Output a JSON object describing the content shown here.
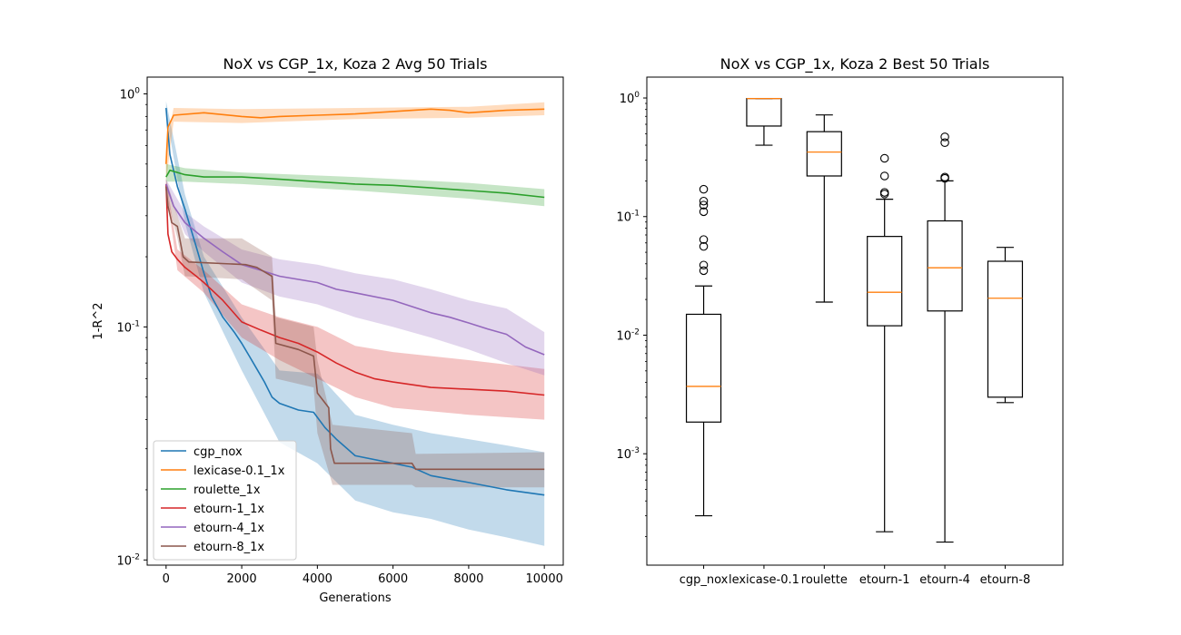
{
  "chart_data": [
    {
      "type": "line",
      "title": "NoX vs CGP_1x, Koza 2 Avg 50 Trials",
      "xlabel": "Generations",
      "ylabel": "1-R^2",
      "xlim": [
        -500,
        10500
      ],
      "ylim": [
        0.0095,
        1.18
      ],
      "yscale": "log",
      "xticks": [
        0,
        2000,
        4000,
        6000,
        8000,
        10000
      ],
      "xtick_labels": [
        "0",
        "2000",
        "4000",
        "6000",
        "8000",
        "10000"
      ],
      "ytick_labels": [
        {
          "label": "10",
          "exp": "0",
          "value": 1
        },
        {
          "label": "10",
          "exp": "-1",
          "value": 0.1
        },
        {
          "label": "10",
          "exp": "-2",
          "value": 0.01
        }
      ],
      "grid": false,
      "legend_position": "lower-left",
      "series": [
        {
          "name": "cgp_nox",
          "color": "#1f77b4",
          "points": [
            [
              0,
              0.87
            ],
            [
              100,
              0.55
            ],
            [
              300,
              0.4
            ],
            [
              500,
              0.32
            ],
            [
              800,
              0.22
            ],
            [
              1000,
              0.17
            ],
            [
              1200,
              0.135
            ],
            [
              1500,
              0.11
            ],
            [
              1800,
              0.095
            ],
            [
              2000,
              0.085
            ],
            [
              2200,
              0.075
            ],
            [
              2400,
              0.066
            ],
            [
              2600,
              0.058
            ],
            [
              2800,
              0.05
            ],
            [
              3000,
              0.047
            ],
            [
              3500,
              0.044
            ],
            [
              3900,
              0.043
            ],
            [
              4200,
              0.037
            ],
            [
              4500,
              0.033
            ],
            [
              5000,
              0.028
            ],
            [
              6000,
              0.026
            ],
            [
              6500,
              0.025
            ],
            [
              7000,
              0.023
            ],
            [
              8000,
              0.0215
            ],
            [
              9000,
              0.02
            ],
            [
              10000,
              0.019
            ]
          ],
          "band": [
            [
              0,
              0.82,
              0.93
            ],
            [
              500,
              0.28,
              0.37
            ],
            [
              1000,
              0.14,
              0.2
            ],
            [
              2000,
              0.065,
              0.11
            ],
            [
              3000,
              0.032,
              0.065
            ],
            [
              4000,
              0.026,
              0.063
            ],
            [
              5000,
              0.018,
              0.042
            ],
            [
              6000,
              0.016,
              0.038
            ],
            [
              7000,
              0.015,
              0.035
            ],
            [
              8000,
              0.0135,
              0.033
            ],
            [
              9000,
              0.0125,
              0.031
            ],
            [
              10000,
              0.0115,
              0.029
            ]
          ]
        },
        {
          "name": "lexicase-0.1_1x",
          "color": "#ff7f0e",
          "points": [
            [
              0,
              0.5
            ],
            [
              50,
              0.72
            ],
            [
              200,
              0.81
            ],
            [
              1000,
              0.83
            ],
            [
              2000,
              0.8
            ],
            [
              2500,
              0.79
            ],
            [
              3000,
              0.8
            ],
            [
              4000,
              0.81
            ],
            [
              5000,
              0.82
            ],
            [
              6000,
              0.84
            ],
            [
              7000,
              0.86
            ],
            [
              7500,
              0.85
            ],
            [
              8000,
              0.83
            ],
            [
              9000,
              0.85
            ],
            [
              10000,
              0.86
            ]
          ],
          "band": [
            [
              0,
              0.42,
              0.6
            ],
            [
              200,
              0.76,
              0.87
            ],
            [
              2000,
              0.75,
              0.86
            ],
            [
              5000,
              0.78,
              0.87
            ],
            [
              8000,
              0.79,
              0.88
            ],
            [
              10000,
              0.81,
              0.92
            ]
          ]
        },
        {
          "name": "roulette_1x",
          "color": "#2ca02c",
          "points": [
            [
              0,
              0.44
            ],
            [
              100,
              0.47
            ],
            [
              500,
              0.45
            ],
            [
              1000,
              0.44
            ],
            [
              2000,
              0.44
            ],
            [
              3000,
              0.43
            ],
            [
              4000,
              0.42
            ],
            [
              5000,
              0.41
            ],
            [
              6000,
              0.405
            ],
            [
              7000,
              0.395
            ],
            [
              8000,
              0.385
            ],
            [
              9000,
              0.375
            ],
            [
              10000,
              0.36
            ]
          ],
          "band": [
            [
              0,
              0.42,
              0.5
            ],
            [
              500,
              0.42,
              0.48
            ],
            [
              2000,
              0.41,
              0.46
            ],
            [
              5000,
              0.385,
              0.44
            ],
            [
              8000,
              0.355,
              0.415
            ],
            [
              10000,
              0.33,
              0.39
            ]
          ]
        },
        {
          "name": "etourn-1_1x",
          "color": "#d62728",
          "points": [
            [
              0,
              0.41
            ],
            [
              50,
              0.25
            ],
            [
              150,
              0.21
            ],
            [
              300,
              0.195
            ],
            [
              500,
              0.18
            ],
            [
              800,
              0.165
            ],
            [
              1000,
              0.155
            ],
            [
              1500,
              0.13
            ],
            [
              2000,
              0.105
            ],
            [
              2500,
              0.097
            ],
            [
              3000,
              0.09
            ],
            [
              3500,
              0.085
            ],
            [
              4000,
              0.078
            ],
            [
              4500,
              0.07
            ],
            [
              5000,
              0.064
            ],
            [
              5500,
              0.06
            ],
            [
              6000,
              0.058
            ],
            [
              7000,
              0.055
            ],
            [
              8000,
              0.054
            ],
            [
              9000,
              0.053
            ],
            [
              10000,
              0.051
            ]
          ],
          "band": [
            [
              0,
              0.39,
              0.43
            ],
            [
              300,
              0.175,
              0.215
            ],
            [
              1000,
              0.14,
              0.175
            ],
            [
              2000,
              0.09,
              0.125
            ],
            [
              3000,
              0.072,
              0.11
            ],
            [
              4000,
              0.06,
              0.1
            ],
            [
              5000,
              0.05,
              0.083
            ],
            [
              6000,
              0.045,
              0.078
            ],
            [
              8000,
              0.042,
              0.072
            ],
            [
              10000,
              0.04,
              0.066
            ]
          ]
        },
        {
          "name": "etourn-4_1x",
          "color": "#9467bd",
          "points": [
            [
              0,
              0.41
            ],
            [
              200,
              0.33
            ],
            [
              500,
              0.28
            ],
            [
              1000,
              0.24
            ],
            [
              1500,
              0.21
            ],
            [
              2000,
              0.185
            ],
            [
              2500,
              0.175
            ],
            [
              3000,
              0.165
            ],
            [
              4000,
              0.155
            ],
            [
              4500,
              0.145
            ],
            [
              5000,
              0.14
            ],
            [
              6000,
              0.13
            ],
            [
              7000,
              0.115
            ],
            [
              7500,
              0.11
            ],
            [
              8000,
              0.104
            ],
            [
              8500,
              0.098
            ],
            [
              9000,
              0.093
            ],
            [
              9500,
              0.082
            ],
            [
              10000,
              0.076
            ]
          ],
          "band": [
            [
              0,
              0.39,
              0.43
            ],
            [
              500,
              0.25,
              0.31
            ],
            [
              1000,
              0.21,
              0.27
            ],
            [
              2000,
              0.155,
              0.215
            ],
            [
              3000,
              0.135,
              0.195
            ],
            [
              4000,
              0.125,
              0.185
            ],
            [
              5000,
              0.11,
              0.17
            ],
            [
              6000,
              0.1,
              0.16
            ],
            [
              7000,
              0.09,
              0.145
            ],
            [
              8000,
              0.08,
              0.13
            ],
            [
              9000,
              0.07,
              0.12
            ],
            [
              10000,
              0.062,
              0.095
            ]
          ]
        },
        {
          "name": "etourn-8_1x",
          "color": "#8c564b",
          "points": [
            [
              0,
              0.4
            ],
            [
              50,
              0.33
            ],
            [
              150,
              0.28
            ],
            [
              300,
              0.27
            ],
            [
              450,
              0.2
            ],
            [
              600,
              0.19
            ],
            [
              2100,
              0.185
            ],
            [
              2400,
              0.18
            ],
            [
              2800,
              0.165
            ],
            [
              2900,
              0.085
            ],
            [
              3500,
              0.08
            ],
            [
              3900,
              0.075
            ],
            [
              4000,
              0.052
            ],
            [
              4300,
              0.045
            ],
            [
              4350,
              0.03
            ],
            [
              4450,
              0.026
            ],
            [
              6500,
              0.026
            ],
            [
              6600,
              0.0245
            ],
            [
              10000,
              0.0245
            ]
          ],
          "band": [
            [
              0,
              0.37,
              0.43
            ],
            [
              300,
              0.24,
              0.3
            ],
            [
              500,
              0.165,
              0.24
            ],
            [
              2000,
              0.16,
              0.24
            ],
            [
              2800,
              0.13,
              0.2
            ],
            [
              2900,
              0.06,
              0.11
            ],
            [
              3900,
              0.055,
              0.1
            ],
            [
              4000,
              0.035,
              0.072
            ],
            [
              4400,
              0.021,
              0.038
            ],
            [
              6500,
              0.021,
              0.035
            ],
            [
              6600,
              0.0205,
              0.0285
            ],
            [
              10000,
              0.0205,
              0.029
            ]
          ]
        }
      ]
    },
    {
      "type": "box",
      "title": "NoX vs CGP_1x, Koza 2 Best 50 Trials",
      "yscale": "log",
      "ylim": [
        0.000115,
        1.5
      ],
      "ytick_labels": [
        {
          "label": "10",
          "exp": "0",
          "value": 1
        },
        {
          "label": "10",
          "exp": "-1",
          "value": 0.1
        },
        {
          "label": "10",
          "exp": "-2",
          "value": 0.01
        },
        {
          "label": "10",
          "exp": "-3",
          "value": 0.001
        }
      ],
      "categories": [
        "cgp_nox",
        "lexicase-0.1",
        "roulette",
        "etourn-1",
        "etourn-4",
        "etourn-8"
      ],
      "median_color": "#ff7f0e",
      "boxes": [
        {
          "label": "cgp_nox",
          "whislo": 0.0003,
          "q1": 0.00185,
          "med": 0.0037,
          "q3": 0.015,
          "whishi": 0.026,
          "fliers": [
            0.035,
            0.039,
            0.056,
            0.064,
            0.11,
            0.125,
            0.135,
            0.17
          ]
        },
        {
          "label": "lexicase-0.1",
          "whislo": 0.4,
          "q1": 0.58,
          "med": 0.99,
          "q3": 0.99,
          "whishi": 0.99,
          "fliers": []
        },
        {
          "label": "roulette",
          "whislo": 0.019,
          "q1": 0.22,
          "med": 0.35,
          "q3": 0.52,
          "whishi": 0.72,
          "fliers": []
        },
        {
          "label": "etourn-1",
          "whislo": 0.00022,
          "q1": 0.012,
          "med": 0.023,
          "q3": 0.068,
          "whishi": 0.14,
          "fliers": [
            0.155,
            0.16,
            0.22,
            0.31
          ]
        },
        {
          "label": "etourn-4",
          "whislo": 0.00018,
          "q1": 0.016,
          "med": 0.037,
          "q3": 0.092,
          "whishi": 0.2,
          "fliers": [
            0.21,
            0.215,
            0.42,
            0.47
          ]
        },
        {
          "label": "etourn-8",
          "whislo": 0.0027,
          "q1": 0.003,
          "med": 0.0205,
          "q3": 0.042,
          "whishi": 0.055,
          "fliers": []
        }
      ]
    }
  ]
}
